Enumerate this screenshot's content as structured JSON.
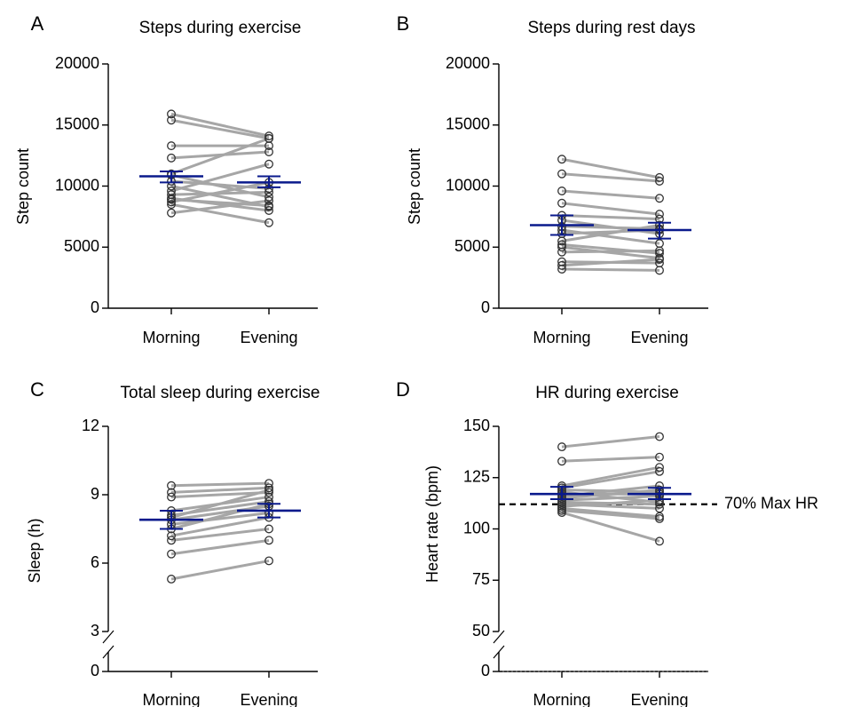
{
  "chart_data": [
    {
      "letter": "A",
      "type": "scatter",
      "title": "Steps during exercise",
      "ylabel": "Step count",
      "categories": [
        "Morning",
        "Evening"
      ],
      "ylim": [
        0,
        20000
      ],
      "yticks": [
        0,
        5000,
        10000,
        15000,
        20000
      ],
      "ytick_labels": [
        "0",
        "5000",
        "10000",
        "15000",
        "20000"
      ],
      "pairs": [
        [
          15900,
          14100
        ],
        [
          15400,
          13900
        ],
        [
          13300,
          13300
        ],
        [
          12300,
          12800
        ],
        [
          11000,
          13900
        ],
        [
          10900,
          9100
        ],
        [
          10400,
          9800
        ],
        [
          10000,
          8300
        ],
        [
          9600,
          11800
        ],
        [
          9300,
          9500
        ],
        [
          8900,
          8400
        ],
        [
          8700,
          10300
        ],
        [
          8500,
          7000
        ],
        [
          7800,
          8800
        ],
        [
          9000,
          8000
        ]
      ],
      "means": [
        10800,
        10300
      ],
      "sem": [
        [
          10300,
          11200
        ],
        [
          9900,
          10800
        ]
      ],
      "colors": {
        "line": "#a6a6a6",
        "marker": "#333333",
        "mean": "#0a1a8c"
      }
    },
    {
      "letter": "B",
      "type": "scatter",
      "title": "Steps during rest days",
      "ylabel": "Step count",
      "categories": [
        "Morning",
        "Evening"
      ],
      "ylim": [
        0,
        20000
      ],
      "yticks": [
        0,
        5000,
        10000,
        15000,
        20000
      ],
      "ytick_labels": [
        "0",
        "5000",
        "10000",
        "15000",
        "20000"
      ],
      "pairs": [
        [
          12200,
          10700
        ],
        [
          11000,
          10400
        ],
        [
          9600,
          9000
        ],
        [
          8600,
          7700
        ],
        [
          7600,
          7300
        ],
        [
          7200,
          6100
        ],
        [
          6700,
          6500
        ],
        [
          6400,
          5300
        ],
        [
          6100,
          6400
        ],
        [
          5200,
          4500
        ],
        [
          5000,
          4100
        ],
        [
          4600,
          4700
        ],
        [
          3800,
          3700
        ],
        [
          3500,
          4000
        ],
        [
          3200,
          3100
        ],
        [
          5500,
          6800
        ]
      ],
      "means": [
        6800,
        6400
      ],
      "sem": [
        [
          6000,
          7600
        ],
        [
          5700,
          7000
        ]
      ],
      "colors": {
        "line": "#a6a6a6",
        "marker": "#333333",
        "mean": "#0a1a8c"
      }
    },
    {
      "letter": "C",
      "type": "scatter",
      "title": "Total sleep during exercise",
      "ylabel": "Sleep (h)",
      "categories": [
        "Morning",
        "Evening"
      ],
      "ylim": [
        0,
        12
      ],
      "axis_break": [
        0,
        3
      ],
      "yticks": [
        0,
        3,
        6,
        9,
        12
      ],
      "ytick_labels": [
        "0",
        "3",
        "6",
        "9",
        "12"
      ],
      "pairs": [
        [
          9.4,
          9.5
        ],
        [
          9.1,
          9.3
        ],
        [
          8.9,
          9.1
        ],
        [
          8.3,
          8.9
        ],
        [
          8.1,
          8.7
        ],
        [
          7.9,
          8.5
        ],
        [
          7.7,
          8.2
        ],
        [
          7.2,
          8.0
        ],
        [
          7.0,
          7.5
        ],
        [
          6.4,
          7.0
        ],
        [
          5.3,
          6.1
        ],
        [
          7.5,
          8.6
        ],
        [
          8.0,
          9.2
        ]
      ],
      "means": [
        7.9,
        8.3
      ],
      "sem": [
        [
          7.5,
          8.3
        ],
        [
          8.0,
          8.6
        ]
      ],
      "colors": {
        "line": "#a6a6a6",
        "marker": "#333333",
        "mean": "#0a1a8c"
      }
    },
    {
      "letter": "D",
      "type": "scatter",
      "title": "HR during exercise",
      "ylabel": "Heart rate (bpm)",
      "categories": [
        "Morning",
        "Evening"
      ],
      "ylim": [
        0,
        150
      ],
      "axis_break": [
        0,
        50
      ],
      "yticks": [
        0,
        50,
        75,
        100,
        125,
        150
      ],
      "ytick_labels": [
        "0",
        "50",
        "75",
        "100",
        "125",
        "150"
      ],
      "pairs": [
        [
          140,
          145
        ],
        [
          133,
          135
        ],
        [
          121,
          130
        ],
        [
          120,
          128
        ],
        [
          119,
          118
        ],
        [
          118,
          113
        ],
        [
          117,
          117
        ],
        [
          116,
          121
        ],
        [
          114,
          116
        ],
        [
          113,
          112
        ],
        [
          112,
          110
        ],
        [
          110,
          106
        ],
        [
          109,
          105
        ],
        [
          108,
          94
        ],
        [
          115,
          119
        ],
        [
          111,
          114
        ]
      ],
      "means": [
        117,
        117
      ],
      "sem": [
        [
          114.5,
          120.5
        ],
        [
          114.5,
          120
        ]
      ],
      "reference_line": {
        "y": 112,
        "label": "70% Max HR"
      },
      "colors": {
        "line": "#a6a6a6",
        "marker": "#333333",
        "mean": "#0a1a8c"
      }
    }
  ]
}
